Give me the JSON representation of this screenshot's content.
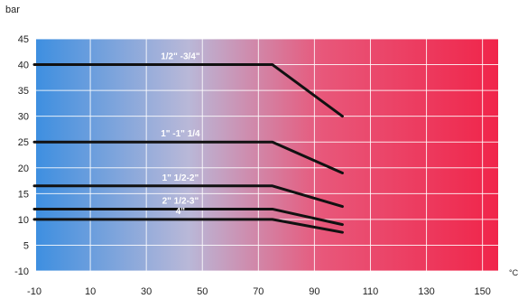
{
  "chart_data": {
    "type": "line",
    "ylabel": "bar",
    "xunit": "°C",
    "x_ticks": [
      -10,
      10,
      30,
      50,
      70,
      90,
      110,
      130,
      150
    ],
    "y_ticks": [
      -10,
      5,
      10,
      15,
      20,
      25,
      30,
      35,
      40,
      45
    ],
    "xlim": [
      -10,
      150
    ],
    "grid": true,
    "background_gradient": [
      "#3e8fe0",
      "#b9b8d8",
      "#e8577a",
      "#f0254a"
    ],
    "line_color": "#111111",
    "series": [
      {
        "name": "1/2\" -3/4\"",
        "x": [
          -10,
          75,
          100
        ],
        "y": [
          40,
          40,
          30
        ]
      },
      {
        "name": "1\" -1\" 1/4",
        "x": [
          -10,
          75,
          100
        ],
        "y": [
          25,
          25,
          19
        ]
      },
      {
        "name": "1\" 1/2-2\"",
        "x": [
          -10,
          75,
          100
        ],
        "y": [
          16.5,
          16.5,
          12.5
        ]
      },
      {
        "name": "2\" 1/2-3\"",
        "x": [
          -10,
          75,
          100
        ],
        "y": [
          12,
          12,
          9
        ]
      },
      {
        "name": "4\"",
        "x": [
          -10,
          75,
          100
        ],
        "y": [
          10,
          10,
          7.5
        ]
      }
    ]
  }
}
